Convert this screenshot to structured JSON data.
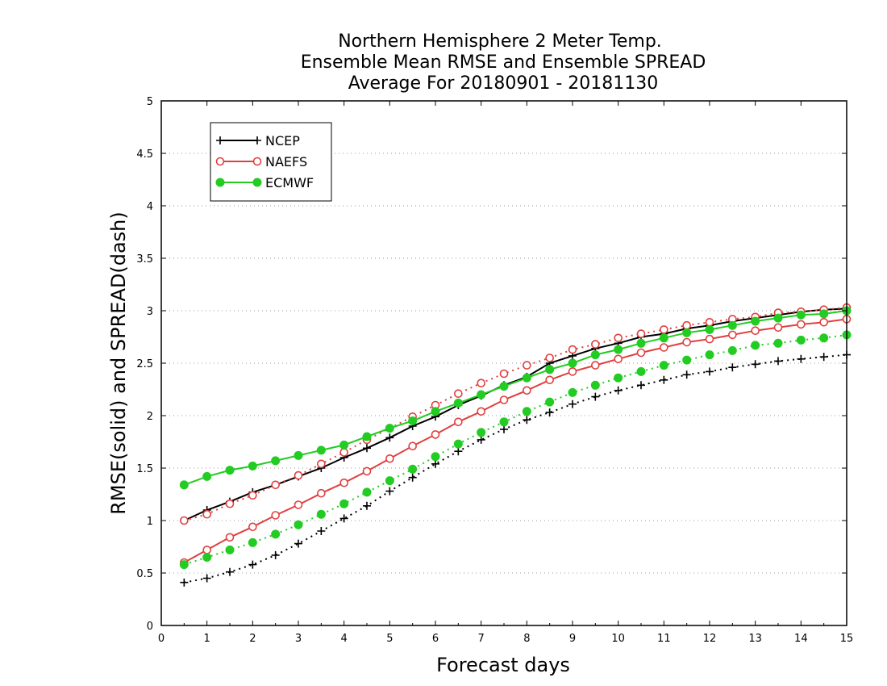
{
  "chart_data": {
    "type": "line",
    "title": [
      "Northern Hemisphere 2 Meter Temp.",
      "Ensemble Mean RMSE and Ensemble SPREAD",
      "Average For 20180901 - 20181130"
    ],
    "xlabel": "Forecast days",
    "ylabel": "RMSE(solid) and SPREAD(dash)",
    "xlim": [
      0,
      15
    ],
    "ylim": [
      0,
      5
    ],
    "xticks": [
      "0",
      "1",
      "2",
      "3",
      "4",
      "5",
      "6",
      "7",
      "8",
      "9",
      "10",
      "11",
      "12",
      "13",
      "14",
      "15"
    ],
    "yticks": [
      "0",
      "0.5",
      "1",
      "1.5",
      "2",
      "2.5",
      "3",
      "3.5",
      "4",
      "4.5",
      "5"
    ],
    "grid": "horizontal-dotted",
    "legend_placement": "top-left",
    "x": [
      0.5,
      1,
      1.5,
      2,
      2.5,
      3,
      3.5,
      4,
      4.5,
      5,
      5.5,
      6,
      6.5,
      7,
      7.5,
      8,
      8.5,
      9,
      9.5,
      10,
      10.5,
      11,
      11.5,
      12,
      12.5,
      13,
      13.5,
      14,
      14.5,
      15
    ],
    "series": [
      {
        "name": "NCEP",
        "style": "solid",
        "color": "#000000",
        "marker": "plus",
        "values": [
          1.0,
          1.1,
          1.18,
          1.27,
          1.34,
          1.42,
          1.5,
          1.6,
          1.69,
          1.79,
          1.9,
          1.99,
          2.1,
          2.19,
          2.29,
          2.37,
          2.5,
          2.57,
          2.64,
          2.69,
          2.75,
          2.78,
          2.83,
          2.86,
          2.9,
          2.93,
          2.96,
          2.99,
          3.01,
          3.02
        ]
      },
      {
        "name": "NCEP",
        "style": "dotted",
        "color": "#000000",
        "marker": "plus",
        "values": [
          0.41,
          0.45,
          0.51,
          0.58,
          0.67,
          0.78,
          0.9,
          1.02,
          1.14,
          1.28,
          1.41,
          1.54,
          1.66,
          1.77,
          1.87,
          1.96,
          2.03,
          2.11,
          2.18,
          2.24,
          2.29,
          2.34,
          2.39,
          2.42,
          2.46,
          2.49,
          2.52,
          2.54,
          2.56,
          2.58
        ]
      },
      {
        "name": "NAEFS",
        "style": "solid",
        "color": "#e04040",
        "marker": "open-circle",
        "values": [
          0.6,
          0.72,
          0.84,
          0.94,
          1.05,
          1.15,
          1.26,
          1.36,
          1.47,
          1.59,
          1.71,
          1.82,
          1.94,
          2.04,
          2.15,
          2.24,
          2.34,
          2.42,
          2.48,
          2.54,
          2.6,
          2.65,
          2.7,
          2.73,
          2.77,
          2.81,
          2.84,
          2.87,
          2.89,
          2.92
        ]
      },
      {
        "name": "NAEFS",
        "style": "dotted",
        "color": "#e04040",
        "marker": "open-circle",
        "values": [
          1.0,
          1.06,
          1.16,
          1.24,
          1.34,
          1.43,
          1.54,
          1.65,
          1.77,
          1.88,
          1.99,
          2.1,
          2.21,
          2.31,
          2.4,
          2.48,
          2.55,
          2.63,
          2.68,
          2.74,
          2.78,
          2.82,
          2.86,
          2.89,
          2.92,
          2.94,
          2.98,
          2.99,
          3.01,
          3.03
        ]
      },
      {
        "name": "ECMWF",
        "style": "solid",
        "color": "#22cc22",
        "marker": "filled-circle",
        "values": [
          1.34,
          1.42,
          1.48,
          1.52,
          1.57,
          1.62,
          1.67,
          1.72,
          1.8,
          1.88,
          1.95,
          2.04,
          2.12,
          2.2,
          2.28,
          2.36,
          2.44,
          2.5,
          2.58,
          2.63,
          2.69,
          2.74,
          2.79,
          2.82,
          2.86,
          2.9,
          2.93,
          2.96,
          2.97,
          3.0
        ]
      },
      {
        "name": "ECMWF",
        "style": "dotted",
        "color": "#22cc22",
        "marker": "filled-circle",
        "values": [
          0.58,
          0.65,
          0.72,
          0.79,
          0.87,
          0.96,
          1.06,
          1.16,
          1.27,
          1.38,
          1.49,
          1.61,
          1.73,
          1.84,
          1.94,
          2.04,
          2.13,
          2.22,
          2.29,
          2.36,
          2.42,
          2.48,
          2.53,
          2.58,
          2.62,
          2.67,
          2.69,
          2.72,
          2.74,
          2.77
        ]
      }
    ],
    "legend": [
      {
        "label": "NCEP",
        "color": "#000000",
        "marker": "plus"
      },
      {
        "label": "NAEFS",
        "color": "#e04040",
        "marker": "open-circle"
      },
      {
        "label": "ECMWF",
        "color": "#22cc22",
        "marker": "filled-circle"
      }
    ]
  }
}
